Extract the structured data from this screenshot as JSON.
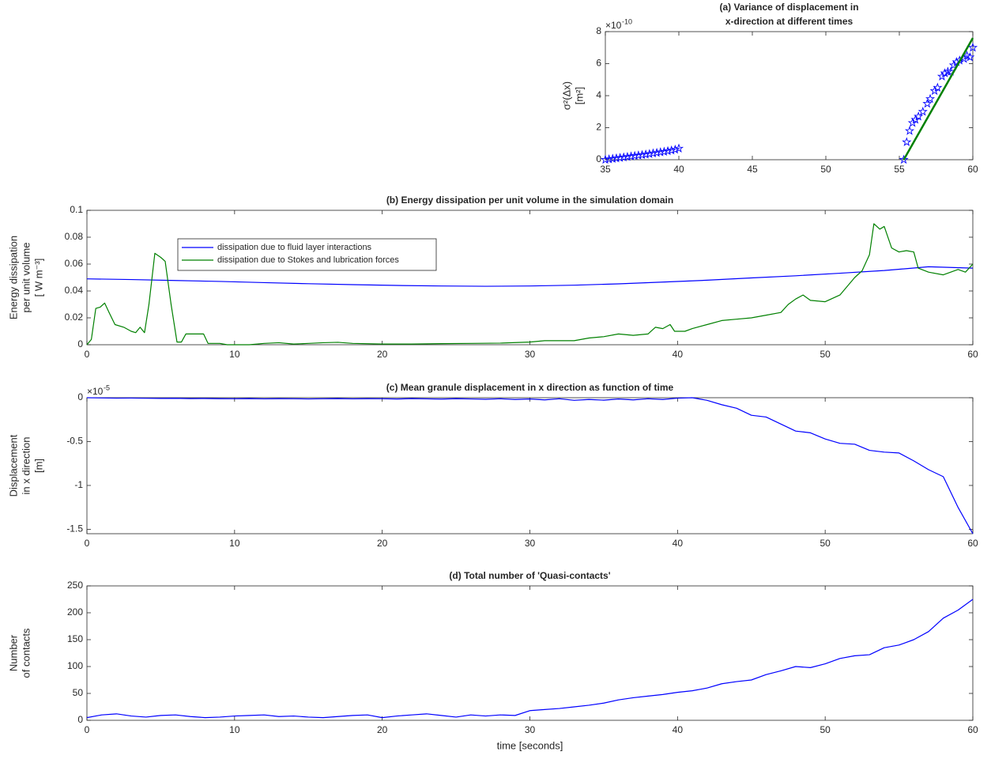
{
  "chart_data": [
    {
      "type": "scatter",
      "title": [
        "(a) Variance of displacement in",
        "x-direction at different times"
      ],
      "ylabel": [
        "σ²(Δx)",
        "[m²]"
      ],
      "y_multiplier_base": "×10",
      "y_multiplier_exponent": "-10",
      "xlim": [
        35,
        60
      ],
      "xticks": [
        35,
        40,
        45,
        50,
        55,
        60
      ],
      "ylim": [
        0,
        8
      ],
      "yticks": [
        0,
        2,
        4,
        6,
        8
      ],
      "series": [
        {
          "type": "scatter",
          "marker": "star",
          "color": "#0000ff",
          "x": [
            35,
            35.25,
            35.5,
            35.75,
            36,
            36.25,
            36.5,
            36.75,
            37,
            37.25,
            37.5,
            37.75,
            38,
            38.25,
            38.5,
            38.75,
            39,
            39.25,
            39.5,
            39.75,
            40,
            55.3,
            55.5,
            55.7,
            55.9,
            56.1,
            56.3,
            56.6,
            56.9,
            57.1,
            57.4,
            57.6,
            57.9,
            58.1,
            58.3,
            58.5,
            58.7,
            58.9,
            59.1,
            59.4,
            59.6,
            59.8,
            60
          ],
          "values": [
            0,
            0.03,
            0.06,
            0.09,
            0.12,
            0.15,
            0.18,
            0.21,
            0.24,
            0.27,
            0.3,
            0.33,
            0.36,
            0.4,
            0.43,
            0.47,
            0.5,
            0.54,
            0.58,
            0.63,
            0.7,
            0,
            1.1,
            1.8,
            2.3,
            2.5,
            2.7,
            3,
            3.5,
            3.8,
            4.3,
            4.5,
            5.2,
            5.4,
            5.5,
            5.5,
            5.9,
            6.1,
            6.2,
            6.3,
            6.5,
            6.4,
            7
          ]
        },
        {
          "type": "line",
          "color": "#008000",
          "x": [
            55.3,
            60
          ],
          "values": [
            0,
            7.6
          ]
        }
      ]
    },
    {
      "type": "line",
      "title": "(b) Energy dissipation per unit volume in the simulation domain",
      "ylabel": [
        "Energy dissipation",
        "per unit volume",
        "[ W m⁻³]"
      ],
      "xlim": [
        0,
        60
      ],
      "xticks": [
        0,
        10,
        20,
        30,
        40,
        50,
        60
      ],
      "ylim": [
        0,
        0.1
      ],
      "yticks": [
        0,
        0.02,
        0.04,
        0.06,
        0.08,
        0.1
      ],
      "legend": "upper left",
      "series": [
        {
          "name": "dissipation due to fluid layer interactions",
          "color": "#0000ff",
          "x": [
            0,
            3,
            6,
            9,
            12,
            15,
            18,
            21,
            24,
            27,
            30,
            33,
            36,
            39,
            42,
            45,
            48,
            51,
            54,
            57,
            60
          ],
          "values": [
            0.049,
            0.0485,
            0.0478,
            0.0471,
            0.0462,
            0.0454,
            0.0447,
            0.0441,
            0.0437,
            0.0435,
            0.0437,
            0.0443,
            0.0453,
            0.0466,
            0.048,
            0.0497,
            0.0513,
            0.0532,
            0.0552,
            0.058,
            0.057
          ]
        },
        {
          "name": "dissipation due to Stokes and lubrication forces",
          "color": "#008000",
          "x": [
            0,
            0.3,
            0.6,
            0.9,
            1.2,
            1.5,
            1.9,
            2.5,
            3,
            3.3,
            3.6,
            3.9,
            4.2,
            4.6,
            5,
            5.3,
            5.7,
            6.1,
            6.4,
            6.7,
            7.3,
            7.9,
            8.2,
            9,
            9.5,
            10,
            11,
            12,
            13,
            14,
            15,
            16,
            17,
            18,
            20,
            22,
            24,
            26,
            28,
            30,
            31,
            32,
            33,
            34,
            35,
            36,
            37,
            38,
            38.5,
            39,
            39.5,
            39.8,
            40.5,
            41,
            42,
            43,
            44,
            45,
            46,
            47,
            47.5,
            48,
            48.5,
            49,
            50,
            51,
            52,
            52.5,
            53,
            53.3,
            53.7,
            54,
            54.5,
            55,
            55.5,
            56,
            56.3,
            57,
            58,
            59,
            59.5,
            60
          ],
          "values": [
            0,
            0.004,
            0.027,
            0.028,
            0.031,
            0.024,
            0.015,
            0.013,
            0.01,
            0.009,
            0.013,
            0.009,
            0.03,
            0.068,
            0.065,
            0.062,
            0.03,
            0.002,
            0.002,
            0.008,
            0.008,
            0.008,
            0.001,
            0.001,
            0,
            0,
            0,
            0.001,
            0.0015,
            0.0005,
            0.001,
            0.0015,
            0.0018,
            0.001,
            0.0005,
            0.0005,
            0.0008,
            0.001,
            0.0012,
            0.002,
            0.003,
            0.003,
            0.003,
            0.005,
            0.006,
            0.008,
            0.007,
            0.008,
            0.013,
            0.012,
            0.015,
            0.01,
            0.01,
            0.012,
            0.015,
            0.018,
            0.019,
            0.02,
            0.022,
            0.024,
            0.03,
            0.034,
            0.037,
            0.033,
            0.032,
            0.037,
            0.05,
            0.055,
            0.067,
            0.09,
            0.086,
            0.088,
            0.072,
            0.069,
            0.07,
            0.069,
            0.057,
            0.054,
            0.052,
            0.056,
            0.054,
            0.06
          ]
        }
      ]
    },
    {
      "type": "line",
      "title": "(c) Mean granule displacement in x direction as function of time",
      "ylabel": [
        "Displacement",
        "in x direction",
        "[m]"
      ],
      "y_multiplier_base": "×10",
      "y_multiplier_exponent": "-5",
      "xlim": [
        0,
        60
      ],
      "xticks": [
        0,
        10,
        20,
        30,
        40,
        50,
        60
      ],
      "ylim": [
        -1.55,
        0
      ],
      "yticks": [
        -1.5,
        -1,
        -0.5,
        0
      ],
      "series": [
        {
          "color": "#0000ff",
          "x": [
            0,
            1,
            2,
            3,
            4,
            5,
            6,
            7,
            8,
            9,
            10,
            11,
            12,
            13,
            14,
            15,
            16,
            17,
            18,
            19,
            20,
            21,
            22,
            23,
            24,
            25,
            26,
            27,
            28,
            29,
            30,
            31,
            32,
            33,
            34,
            35,
            36,
            37,
            38,
            39,
            40,
            41,
            42,
            43,
            44,
            45,
            46,
            47,
            48,
            49,
            50,
            51,
            52,
            53,
            54,
            55,
            56,
            57,
            58,
            59,
            60
          ],
          "values": [
            0,
            -0.003,
            -0.005,
            -0.004,
            -0.006,
            -0.008,
            -0.007,
            -0.01,
            -0.009,
            -0.011,
            -0.012,
            -0.01,
            -0.013,
            -0.011,
            -0.012,
            -0.014,
            -0.012,
            -0.01,
            -0.013,
            -0.011,
            -0.012,
            -0.015,
            -0.01,
            -0.013,
            -0.016,
            -0.011,
            -0.014,
            -0.018,
            -0.012,
            -0.02,
            -0.015,
            -0.025,
            -0.012,
            -0.03,
            -0.02,
            -0.028,
            -0.015,
            -0.025,
            -0.012,
            -0.02,
            -0.005,
            0,
            -0.03,
            -0.08,
            -0.12,
            -0.2,
            -0.22,
            -0.3,
            -0.38,
            -0.4,
            -0.47,
            -0.52,
            -0.53,
            -0.6,
            -0.62,
            -0.63,
            -0.72,
            -0.82,
            -0.9,
            -1.25,
            -1.55
          ]
        }
      ]
    },
    {
      "type": "line",
      "title": "(d) Total number of 'Quasi-contacts'",
      "ylabel": [
        "Number",
        "of contacts"
      ],
      "xlabel": "time [seconds]",
      "xlim": [
        0,
        60
      ],
      "xticks": [
        0,
        10,
        20,
        30,
        40,
        50,
        60
      ],
      "ylim": [
        0,
        250
      ],
      "yticks": [
        0,
        50,
        100,
        150,
        200,
        250
      ],
      "series": [
        {
          "color": "#0000ff",
          "x": [
            0,
            1,
            2,
            3,
            4,
            5,
            6,
            7,
            8,
            9,
            10,
            11,
            12,
            13,
            14,
            15,
            16,
            17,
            18,
            19,
            20,
            21,
            22,
            23,
            24,
            25,
            26,
            27,
            28,
            29,
            30,
            31,
            32,
            33,
            34,
            35,
            36,
            37,
            38,
            39,
            40,
            41,
            42,
            43,
            44,
            45,
            46,
            47,
            48,
            49,
            50,
            51,
            52,
            53,
            54,
            55,
            56,
            57,
            58,
            59,
            60
          ],
          "values": [
            5,
            10,
            12,
            8,
            6,
            9,
            10,
            7,
            5,
            6,
            8,
            9,
            10,
            7,
            8,
            6,
            5,
            7,
            9,
            10,
            5,
            8,
            10,
            12,
            9,
            6,
            10,
            8,
            10,
            9,
            18,
            20,
            22,
            25,
            28,
            32,
            38,
            42,
            45,
            48,
            52,
            55,
            60,
            68,
            72,
            75,
            85,
            92,
            100,
            98,
            105,
            115,
            120,
            122,
            135,
            140,
            150,
            165,
            190,
            205,
            225
          ]
        }
      ]
    }
  ]
}
